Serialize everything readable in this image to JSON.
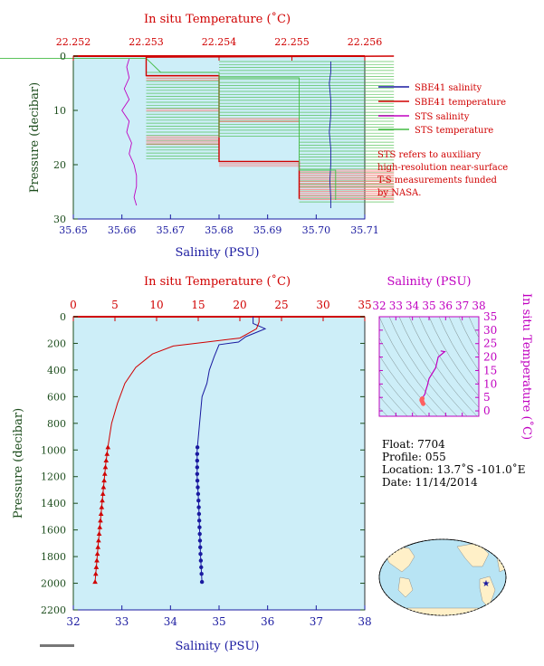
{
  "colors": {
    "plot_bg": "#cdeef8",
    "red": "#d00000",
    "blue": "#1a1aa0",
    "magenta": "#c000c0",
    "green_text": "#1d4d1d",
    "sts_temp": "#44bb44",
    "sbe_temp_light": "#ff8080"
  },
  "top_chart": {
    "top_axis_label": "In situ Temperature (˚C)",
    "bottom_axis_label": "Salinity (PSU)",
    "left_axis_label": "Pressure (decibar)",
    "top_ticks": [
      "22.252",
      "22.253",
      "22.254",
      "22.255",
      "22.256"
    ],
    "bottom_ticks": [
      "35.65",
      "35.66",
      "35.67",
      "35.68",
      "35.69",
      "35.70",
      "35.71"
    ],
    "left_ticks": [
      "0",
      "10",
      "20",
      "30"
    ],
    "legend": [
      {
        "label": "SBE41 salinity",
        "color": "#1a1aa0"
      },
      {
        "label": "SBE41 temperature",
        "color": "#d00000"
      },
      {
        "label": "STS salinity",
        "color": "#c000c0"
      },
      {
        "label": "STS temperature",
        "color": "#44bb44"
      }
    ],
    "note_lines": [
      "STS refers to auxiliary",
      "high-resolution near-surface",
      "T-S measurements funded",
      "by NASA."
    ]
  },
  "main_chart": {
    "top_axis_label": "In situ Temperature (˚C)",
    "bottom_axis_label": "Salinity (PSU)",
    "left_axis_label": "Pressure (decibar)",
    "top_ticks": [
      "0",
      "5",
      "10",
      "15",
      "20",
      "25",
      "30",
      "35"
    ],
    "bottom_ticks": [
      "32",
      "33",
      "34",
      "35",
      "36",
      "37",
      "38"
    ],
    "left_ticks": [
      "0",
      "200",
      "400",
      "600",
      "800",
      "1000",
      "1200",
      "1400",
      "1600",
      "1800",
      "2000",
      "2200"
    ]
  },
  "ts_chart": {
    "top_axis_label": "Salinity (PSU)",
    "right_axis_label": "In situ Temperature (˚C)",
    "top_ticks": [
      "32",
      "33",
      "34",
      "35",
      "36",
      "37",
      "38"
    ],
    "right_ticks": [
      "0",
      "5",
      "10",
      "15",
      "20",
      "25",
      "30",
      "35"
    ]
  },
  "info": {
    "float": "Float:  7704",
    "profile": "Profile:  055",
    "location": "Location:  13.7˚S  -101.0˚E",
    "date": "Date:  11/14/2014"
  },
  "chart_data": [
    {
      "type": "line",
      "title": "",
      "xlabel": "Salinity (PSU)",
      "x2label": "In situ Temperature (˚C)",
      "ylabel": "Pressure (decibar)",
      "xlim": [
        35.65,
        35.71
      ],
      "x2lim": [
        22.252,
        22.256
      ],
      "ylim": [
        30,
        0
      ],
      "series": [
        {
          "name": "SBE41 salinity",
          "axis": "salinity",
          "points": [
            [
              35.703,
              1
            ],
            [
              35.703,
              3
            ],
            [
              35.7027,
              5
            ],
            [
              35.703,
              8
            ],
            [
              35.703,
              11
            ],
            [
              35.7027,
              14
            ],
            [
              35.703,
              17
            ],
            [
              35.703,
              20
            ],
            [
              35.7028,
              23
            ],
            [
              35.703,
              26
            ],
            [
              35.703,
              28
            ]
          ]
        },
        {
          "name": "SBE41 temperature",
          "axis": "temperature",
          "points": [
            [
              22.2564,
              0
            ],
            [
              22.253,
              0.2
            ],
            [
              22.253,
              3.6
            ],
            [
              22.254,
              3.6
            ],
            [
              22.254,
              19.4
            ],
            [
              22.2551,
              19.4
            ],
            [
              22.2551,
              26.3
            ]
          ]
        },
        {
          "name": "STS salinity",
          "axis": "salinity",
          "points": [
            [
              35.6615,
              0.5
            ],
            [
              35.661,
              2
            ],
            [
              35.6615,
              4
            ],
            [
              35.6605,
              6
            ],
            [
              35.6615,
              8
            ],
            [
              35.66,
              10
            ],
            [
              35.6615,
              12
            ],
            [
              35.661,
              14
            ],
            [
              35.662,
              16
            ],
            [
              35.6615,
              18
            ],
            [
              35.6625,
              20
            ],
            [
              35.663,
              22
            ],
            [
              35.663,
              24
            ],
            [
              35.6625,
              26
            ],
            [
              35.663,
              27.5
            ]
          ]
        },
        {
          "name": "STS temperature",
          "axis": "temperature",
          "points": [
            [
              22.2508,
              0.4
            ],
            [
              22.253,
              0.4
            ],
            [
              22.2532,
              3.0
            ],
            [
              22.254,
              3.0
            ],
            [
              22.254,
              15.0
            ],
            [
              22.254,
              4.0
            ],
            [
              22.2551,
              4.0
            ],
            [
              22.2551,
              21.0
            ],
            [
              22.2556,
              21.0
            ],
            [
              22.2556,
              26.5
            ]
          ]
        }
      ]
    },
    {
      "type": "line",
      "title": "",
      "xlabel": "Salinity (PSU)",
      "x2label": "In situ Temperature (˚C)",
      "ylabel": "Pressure (decibar)",
      "xlim": [
        32,
        38
      ],
      "x2lim": [
        0,
        35
      ],
      "ylim": [
        2200,
        0
      ],
      "series": [
        {
          "name": "Salinity",
          "axis": "salinity",
          "marker": "circle",
          "points": [
            [
              35.7,
              0
            ],
            [
              35.7,
              50
            ],
            [
              35.95,
              90
            ],
            [
              35.55,
              150
            ],
            [
              35.4,
              190
            ],
            [
              35.0,
              210
            ],
            [
              34.9,
              300
            ],
            [
              34.8,
              400
            ],
            [
              34.75,
              500
            ],
            [
              34.65,
              600
            ],
            [
              34.6,
              800
            ],
            [
              34.55,
              1000
            ],
            [
              34.55,
              1200
            ],
            [
              34.58,
              1400
            ],
            [
              34.6,
              1600
            ],
            [
              34.62,
              1800
            ],
            [
              34.65,
              2000
            ]
          ],
          "marker_pressures": [
            980,
            1030,
            1080,
            1130,
            1180,
            1230,
            1280,
            1330,
            1380,
            1430,
            1480,
            1530,
            1580,
            1630,
            1680,
            1730,
            1780,
            1830,
            1880,
            1930,
            1990
          ]
        },
        {
          "name": "Temperature",
          "axis": "temperature",
          "marker": "triangle",
          "points": [
            [
              22.3,
              0
            ],
            [
              22.3,
              40
            ],
            [
              22.0,
              90
            ],
            [
              20.0,
              160
            ],
            [
              16.0,
              190
            ],
            [
              12.0,
              220
            ],
            [
              9.5,
              280
            ],
            [
              7.5,
              380
            ],
            [
              6.2,
              500
            ],
            [
              5.3,
              650
            ],
            [
              4.6,
              800
            ],
            [
              4.2,
              960
            ],
            [
              3.9,
              1100
            ],
            [
              3.6,
              1300
            ],
            [
              3.3,
              1500
            ],
            [
              3.0,
              1700
            ],
            [
              2.8,
              1850
            ],
            [
              2.6,
              2000
            ]
          ],
          "marker_pressures": [
            980,
            1030,
            1080,
            1130,
            1180,
            1230,
            1280,
            1330,
            1380,
            1430,
            1480,
            1530,
            1580,
            1630,
            1680,
            1730,
            1780,
            1830,
            1880,
            1930,
            1990
          ]
        }
      ]
    },
    {
      "type": "scatter",
      "title": "",
      "xlabel": "Salinity (PSU)",
      "ylabel": "In situ Temperature (˚C)",
      "xlim": [
        32,
        38
      ],
      "ylim": [
        -2,
        35
      ],
      "series": [
        {
          "name": "T-S",
          "points": [
            [
              35.7,
              22.3
            ],
            [
              35.95,
              22.0
            ],
            [
              35.55,
              20.0
            ],
            [
              35.4,
              16.0
            ],
            [
              35.0,
              12.0
            ],
            [
              34.9,
              9.5
            ],
            [
              34.8,
              7.5
            ],
            [
              34.75,
              6.2
            ],
            [
              34.65,
              5.3
            ],
            [
              34.6,
              4.6
            ],
            [
              34.55,
              4.2
            ],
            [
              34.55,
              3.9
            ],
            [
              34.58,
              3.6
            ],
            [
              34.6,
              3.3
            ],
            [
              34.62,
              3.0
            ],
            [
              34.65,
              2.6
            ]
          ]
        }
      ]
    }
  ]
}
